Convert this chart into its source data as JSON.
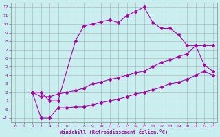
{
  "xlabel": "Windchill (Refroidissement éolien,°C)",
  "background_color": "#c8eef0",
  "grid_color": "#aaaaaa",
  "line_color": "#aa00aa",
  "xlim": [
    -0.5,
    23.5
  ],
  "ylim": [
    -1.5,
    12.5
  ],
  "xticks": [
    0,
    1,
    2,
    3,
    4,
    5,
    6,
    7,
    8,
    9,
    10,
    11,
    12,
    13,
    14,
    15,
    16,
    17,
    18,
    19,
    20,
    21,
    22,
    23
  ],
  "yticks": [
    -1,
    0,
    1,
    2,
    3,
    4,
    5,
    6,
    7,
    8,
    9,
    10,
    11,
    12
  ],
  "curve1_x": [
    2,
    3,
    4,
    5,
    7,
    8,
    9,
    10,
    11,
    12,
    13,
    14,
    15,
    16,
    17,
    18,
    19,
    20,
    21,
    22,
    23
  ],
  "curve1_y": [
    2,
    2,
    1,
    1,
    8,
    9.8,
    10.0,
    10.3,
    10.5,
    10.2,
    11.0,
    11.5,
    12.0,
    10.2,
    9.5,
    9.5,
    8.8,
    7.5,
    7.5,
    5.2,
    4.5
  ],
  "curve2_x": [
    2,
    3,
    4,
    5,
    6,
    7,
    8,
    9,
    10,
    11,
    12,
    13,
    14,
    15,
    16,
    17,
    18,
    19,
    20,
    21,
    22,
    23
  ],
  "curve2_y": [
    2,
    1.5,
    1.5,
    1.8,
    2.0,
    2.2,
    2.5,
    3.0,
    3.2,
    3.5,
    3.7,
    4.0,
    4.3,
    4.5,
    5.0,
    5.5,
    5.8,
    6.2,
    6.5,
    7.5,
    7.5,
    7.5
  ],
  "curve3_x": [
    2,
    3,
    4,
    5,
    6,
    7,
    8,
    9,
    10,
    11,
    12,
    13,
    14,
    15,
    16,
    17,
    18,
    19,
    20,
    21,
    22,
    23
  ],
  "curve3_y": [
    2,
    -1,
    -1,
    0.2,
    0.2,
    0.3,
    0.3,
    0.5,
    0.8,
    1.0,
    1.2,
    1.5,
    1.8,
    2.0,
    2.3,
    2.6,
    3.0,
    3.2,
    3.5,
    4.0,
    4.5,
    4.0
  ]
}
